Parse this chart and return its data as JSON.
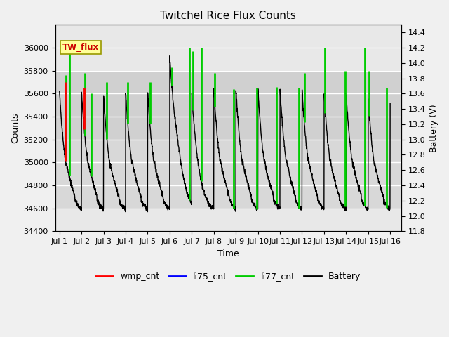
{
  "title": "Twitchel Rice Flux Counts",
  "xlabel": "Time",
  "ylabel_left": "Counts",
  "ylabel_right": "Battery (V)",
  "ylim_left": [
    34400,
    36200
  ],
  "ylim_right": [
    11.8,
    14.5
  ],
  "yticks_left": [
    34400,
    34600,
    34800,
    35000,
    35200,
    35400,
    35600,
    35800,
    36000
  ],
  "yticks_right": [
    11.8,
    12.0,
    12.2,
    12.4,
    12.6,
    12.8,
    13.0,
    13.2,
    13.4,
    13.6,
    13.8,
    14.0,
    14.2,
    14.4
  ],
  "xtick_labels": [
    "Jul 1",
    "Jul 2",
    "Jul 3",
    "Jul 4",
    "Jul 5",
    "Jul 6",
    "Jul 7",
    "Jul 8",
    "Jul 9",
    "Jul 10",
    "Jul 11",
    "Jul 12",
    "Jul 13",
    "Jul 14",
    "Jul 15",
    "Jul 16"
  ],
  "xtick_positions": [
    0,
    1,
    2,
    3,
    4,
    5,
    6,
    7,
    8,
    9,
    10,
    11,
    12,
    13,
    14,
    15
  ],
  "xlim": [
    -0.2,
    15.5
  ],
  "fig_bg": "#f0f0f0",
  "plot_bg": "#e8e8e8",
  "grid_color": "#ffffff",
  "band1_ymin": 35200,
  "band1_ymax": 35800,
  "band1_color": "#d0d0d0",
  "band2_ymin": 34600,
  "band2_ymax": 35200,
  "band2_color": "#d8d8d8",
  "wmp_color": "#ff0000",
  "li75_color": "#0000ff",
  "li77_color": "#00cc00",
  "battery_color": "#000000",
  "tw_flux_box_color": "#ffff99",
  "tw_flux_text_color": "#cc0000",
  "tw_flux_border_color": "#999900",
  "legend_labels": [
    "wmp_cnt",
    "li75_cnt",
    "li77_cnt",
    "Battery"
  ],
  "li77_spike_times": [
    0.28,
    0.45,
    1.15,
    1.45,
    2.15,
    3.1,
    4.1,
    5.1,
    5.9,
    6.05,
    6.45,
    7.05,
    7.9,
    8.95,
    9.85,
    10.85,
    11.1,
    12.05,
    12.95,
    13.85,
    14.05,
    14.85
  ],
  "li77_spike_tops": [
    35760,
    36000,
    35780,
    35600,
    35700,
    35700,
    35700,
    35830,
    36000,
    35970,
    36000,
    35780,
    35640,
    35650,
    35660,
    35650,
    35780,
    36000,
    35800,
    36000,
    35800,
    35650
  ],
  "wmp_spike_times": [
    0.27,
    1.13
  ],
  "wmp_spike_tops": [
    35700,
    35650
  ]
}
